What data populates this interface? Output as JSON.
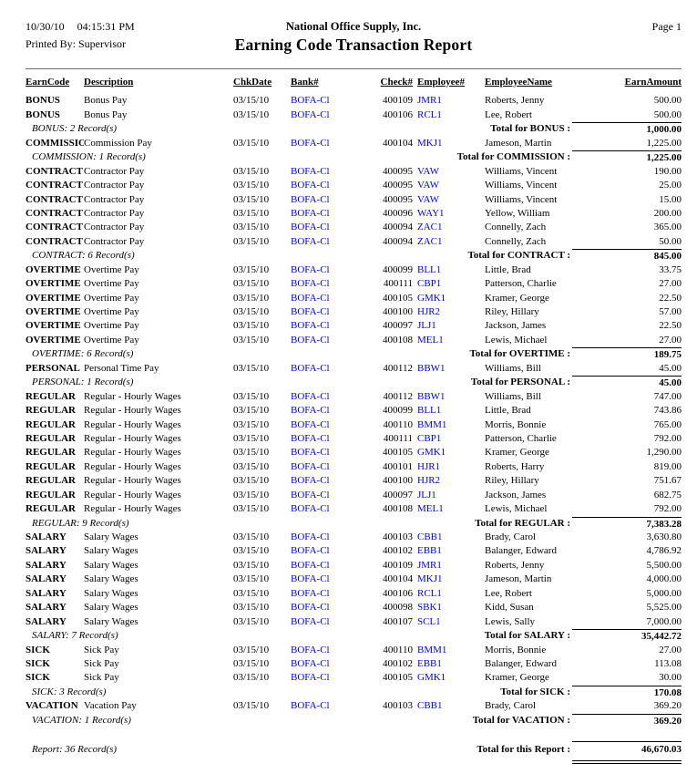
{
  "page_header": {
    "date": "10/30/10",
    "time": "04:15:31 PM",
    "company": "National Office Supply, Inc.",
    "page_number": "Page 1",
    "printed_by": "Printed By: Supervisor",
    "title": "Earning Code Transaction Report"
  },
  "colors": {
    "link_blue": "#0000EE",
    "rule_gray": "#6e6e6e"
  },
  "columns": [
    "EarnCode",
    "Description",
    "ChkDate",
    "Bank#",
    "Check#",
    "Employee#",
    "EmployeeName",
    "EarnAmount"
  ],
  "sections": [
    {
      "group": "BONUS",
      "rows": [
        [
          "BONUS",
          "Bonus Pay",
          "03/15/10",
          "BOFA-Cl",
          "400109",
          "JMR1",
          "Roberts, Jenny",
          "500.00"
        ],
        [
          "BONUS",
          "Bonus Pay",
          "03/15/10",
          "BOFA-Cl",
          "400106",
          "RCL1",
          "Lee, Robert",
          "500.00"
        ]
      ],
      "footer_label": "BONUS: 2 Record(s)",
      "total_label": "Total for BONUS :",
      "total_amount": "1,000.00"
    },
    {
      "group": "COMMISSION",
      "rows": [
        [
          "COMMISSIO!",
          "Commission Pay",
          "03/15/10",
          "BOFA-Cl",
          "400104",
          "MKJ1",
          "Jameson, Martin",
          "1,225.00"
        ]
      ],
      "footer_label": "COMMISSION: 1 Record(s)",
      "total_label": "Total for COMMISSION :",
      "total_amount": "1,225.00"
    },
    {
      "group": "CONTRACT",
      "rows": [
        [
          "CONTRACT",
          "Contractor Pay",
          "03/15/10",
          "BOFA-Cl",
          "400095",
          "VAW",
          "Williams, Vincent",
          "190.00"
        ],
        [
          "CONTRACT",
          "Contractor Pay",
          "03/15/10",
          "BOFA-Cl",
          "400095",
          "VAW",
          "Williams, Vincent",
          "25.00"
        ],
        [
          "CONTRACT",
          "Contractor Pay",
          "03/15/10",
          "BOFA-Cl",
          "400095",
          "VAW",
          "Williams, Vincent",
          "15.00"
        ],
        [
          "CONTRACT",
          "Contractor Pay",
          "03/15/10",
          "BOFA-Cl",
          "400096",
          "WAY1",
          "Yellow, William",
          "200.00"
        ],
        [
          "CONTRACT",
          "Contractor Pay",
          "03/15/10",
          "BOFA-Cl",
          "400094",
          "ZAC1",
          "Connelly, Zach",
          "365.00"
        ],
        [
          "CONTRACT",
          "Contractor Pay",
          "03/15/10",
          "BOFA-Cl",
          "400094",
          "ZAC1",
          "Connelly, Zach",
          "50.00"
        ]
      ],
      "footer_label": "CONTRACT: 6 Record(s)",
      "total_label": "Total for CONTRACT :",
      "total_amount": "845.00"
    },
    {
      "group": "OVERTIME",
      "rows": [
        [
          "OVERTIME",
          "Overtime Pay",
          "03/15/10",
          "BOFA-Cl",
          "400099",
          "BLL1",
          "Little, Brad",
          "33.75"
        ],
        [
          "OVERTIME",
          "Overtime Pay",
          "03/15/10",
          "BOFA-Cl",
          "400111",
          "CBP1",
          "Patterson, Charlie",
          "27.00"
        ],
        [
          "OVERTIME",
          "Overtime Pay",
          "03/15/10",
          "BOFA-Cl",
          "400105",
          "GMK1",
          "Kramer, George",
          "22.50"
        ],
        [
          "OVERTIME",
          "Overtime Pay",
          "03/15/10",
          "BOFA-Cl",
          "400100",
          "HJR2",
          "Riley, Hillary",
          "57.00"
        ],
        [
          "OVERTIME",
          "Overtime Pay",
          "03/15/10",
          "BOFA-Cl",
          "400097",
          "JLJ1",
          "Jackson, James",
          "22.50"
        ],
        [
          "OVERTIME",
          "Overtime Pay",
          "03/15/10",
          "BOFA-Cl",
          "400108",
          "MEL1",
          "Lewis, Michael",
          "27.00"
        ]
      ],
      "footer_label": "OVERTIME: 6 Record(s)",
      "total_label": "Total for OVERTIME :",
      "total_amount": "189.75"
    },
    {
      "group": "PERSONAL",
      "rows": [
        [
          "PERSONAL",
          "Personal Time Pay",
          "03/15/10",
          "BOFA-Cl",
          "400112",
          "BBW1",
          "Williams, Bill",
          "45.00"
        ]
      ],
      "footer_label": "PERSONAL: 1 Record(s)",
      "total_label": "Total for PERSONAL :",
      "total_amount": "45.00"
    },
    {
      "group": "REGULAR",
      "rows": [
        [
          "REGULAR",
          "Regular - Hourly Wages",
          "03/15/10",
          "BOFA-Cl",
          "400112",
          "BBW1",
          "Williams, Bill",
          "747.00"
        ],
        [
          "REGULAR",
          "Regular - Hourly Wages",
          "03/15/10",
          "BOFA-Cl",
          "400099",
          "BLL1",
          "Little, Brad",
          "743.86"
        ],
        [
          "REGULAR",
          "Regular - Hourly Wages",
          "03/15/10",
          "BOFA-Cl",
          "400110",
          "BMM1",
          "Morris, Bonnie",
          "765.00"
        ],
        [
          "REGULAR",
          "Regular - Hourly Wages",
          "03/15/10",
          "BOFA-Cl",
          "400111",
          "CBP1",
          "Patterson, Charlie",
          "792.00"
        ],
        [
          "REGULAR",
          "Regular - Hourly Wages",
          "03/15/10",
          "BOFA-Cl",
          "400105",
          "GMK1",
          "Kramer, George",
          "1,290.00"
        ],
        [
          "REGULAR",
          "Regular - Hourly Wages",
          "03/15/10",
          "BOFA-Cl",
          "400101",
          "HJR1",
          "Roberts, Harry",
          "819.00"
        ],
        [
          "REGULAR",
          "Regular - Hourly Wages",
          "03/15/10",
          "BOFA-Cl",
          "400100",
          "HJR2",
          "Riley, Hillary",
          "751.67"
        ],
        [
          "REGULAR",
          "Regular - Hourly Wages",
          "03/15/10",
          "BOFA-Cl",
          "400097",
          "JLJ1",
          "Jackson, James",
          "682.75"
        ],
        [
          "REGULAR",
          "Regular - Hourly Wages",
          "03/15/10",
          "BOFA-Cl",
          "400108",
          "MEL1",
          "Lewis, Michael",
          "792.00"
        ]
      ],
      "footer_label": "REGULAR: 9 Record(s)",
      "total_label": "Total for REGULAR :",
      "total_amount": "7,383.28"
    },
    {
      "group": "SALARY",
      "rows": [
        [
          "SALARY",
          "Salary Wages",
          "03/15/10",
          "BOFA-Cl",
          "400103",
          "CBB1",
          "Brady, Carol",
          "3,630.80"
        ],
        [
          "SALARY",
          "Salary Wages",
          "03/15/10",
          "BOFA-Cl",
          "400102",
          "EBB1",
          "Balanger, Edward",
          "4,786.92"
        ],
        [
          "SALARY",
          "Salary Wages",
          "03/15/10",
          "BOFA-Cl",
          "400109",
          "JMR1",
          "Roberts, Jenny",
          "5,500.00"
        ],
        [
          "SALARY",
          "Salary Wages",
          "03/15/10",
          "BOFA-Cl",
          "400104",
          "MKJ1",
          "Jameson, Martin",
          "4,000.00"
        ],
        [
          "SALARY",
          "Salary Wages",
          "03/15/10",
          "BOFA-Cl",
          "400106",
          "RCL1",
          "Lee, Robert",
          "5,000.00"
        ],
        [
          "SALARY",
          "Salary Wages",
          "03/15/10",
          "BOFA-Cl",
          "400098",
          "SBK1",
          "Kidd, Susan",
          "5,525.00"
        ],
        [
          "SALARY",
          "Salary Wages",
          "03/15/10",
          "BOFA-Cl",
          "400107",
          "SCL1",
          "Lewis, Sally",
          "7,000.00"
        ]
      ],
      "footer_label": "SALARY: 7 Record(s)",
      "total_label": "Total for SALARY :",
      "total_amount": "35,442.72"
    },
    {
      "group": "SICK",
      "rows": [
        [
          "SICK",
          "Sick Pay",
          "03/15/10",
          "BOFA-Cl",
          "400110",
          "BMM1",
          "Morris, Bonnie",
          "27.00"
        ],
        [
          "SICK",
          "Sick Pay",
          "03/15/10",
          "BOFA-Cl",
          "400102",
          "EBB1",
          "Balanger, Edward",
          "113.08"
        ],
        [
          "SICK",
          "Sick Pay",
          "03/15/10",
          "BOFA-Cl",
          "400105",
          "GMK1",
          "Kramer, George",
          "30.00"
        ]
      ],
      "footer_label": "SICK: 3 Record(s)",
      "total_label": "Total for SICK :",
      "total_amount": "170.08"
    },
    {
      "group": "VACATION",
      "rows": [
        [
          "VACATION",
          "Vacation Pay",
          "03/15/10",
          "BOFA-Cl",
          "400103",
          "CBB1",
          "Brady, Carol",
          "369.20"
        ]
      ],
      "footer_label": "VACATION: 1 Record(s)",
      "total_label": "Total for VACATION :",
      "total_amount": "369.20"
    }
  ],
  "report_footer": {
    "records_label": "Report: 36 Record(s)",
    "total_label": "Total for this Report :",
    "total_amount": "46,670.03"
  }
}
